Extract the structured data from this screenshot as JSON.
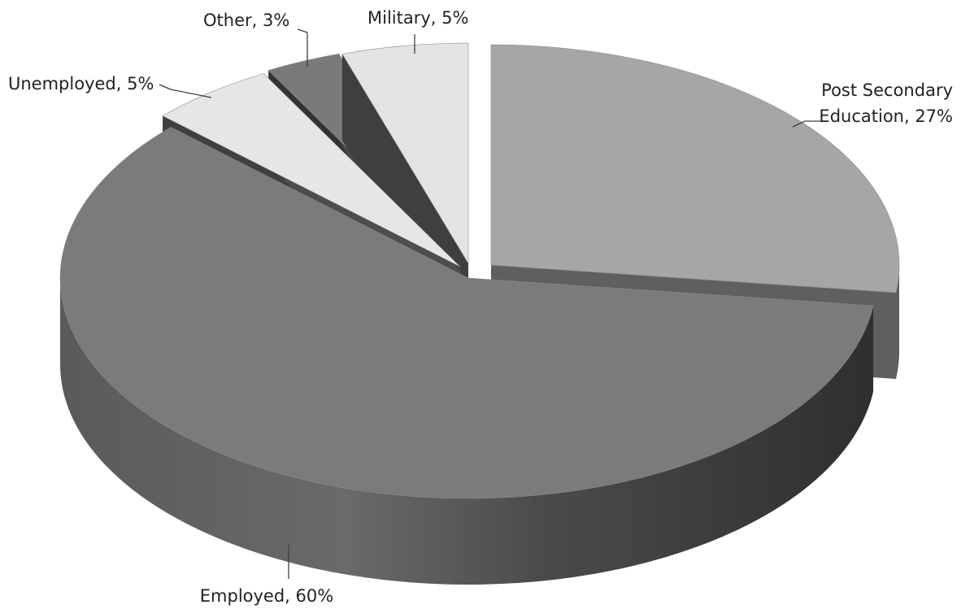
{
  "chart_data": {
    "type": "pie",
    "style": "3d-exploded",
    "title": "",
    "colors": {
      "background": "#ffffff",
      "label_text": "#222222",
      "leader_line": "#404040"
    },
    "slices": [
      {
        "category": "Post Secondary Education",
        "value": 27,
        "label_lines": [
          "Post Secondary",
          "Education, 27%"
        ],
        "colors": {
          "top": "#a6a6a6",
          "side": "#5f5f5f",
          "edge": "#4a4a4a"
        }
      },
      {
        "category": "Employed",
        "value": 60,
        "label_lines": [
          "Employed, 60%"
        ],
        "colors": {
          "top": "#7b7b7b",
          "side": "#555555",
          "edge": "#3b3b3b"
        }
      },
      {
        "category": "Unemployed",
        "value": 5,
        "label_lines": [
          "Unemployed, 5%"
        ],
        "colors": {
          "top": "#e6e6e6",
          "side": "#4d4d4d",
          "edge": "#404040"
        }
      },
      {
        "category": "Other",
        "value": 3,
        "label_lines": [
          "Other, 3%"
        ],
        "colors": {
          "top": "#7a7a7a",
          "side": "#4a4a4a",
          "edge": "#333333"
        }
      },
      {
        "category": "Military",
        "value": 5,
        "label_lines": [
          "Military, 5%"
        ],
        "colors": {
          "top": "#e3e3e3",
          "side": "#535353",
          "edge": "#3f3f3f"
        }
      }
    ]
  }
}
